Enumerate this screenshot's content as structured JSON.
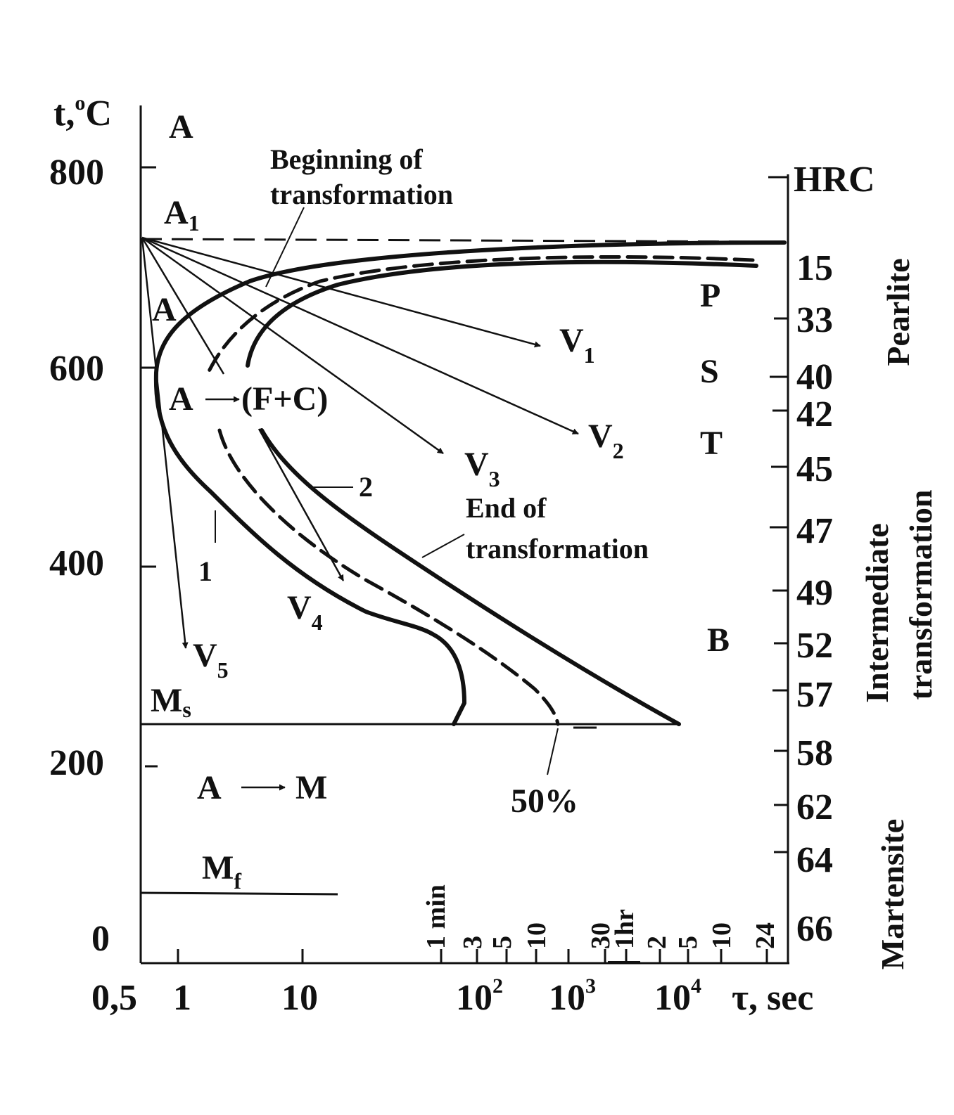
{
  "y_axis": {
    "label": "t,",
    "label_sup": "o",
    "label_unit": "C",
    "ticks": [
      "800",
      "600",
      "400",
      "200",
      "0"
    ]
  },
  "x_axis": {
    "label": "τ, sec",
    "tick_05": "0,5",
    "tick_1": "1",
    "tick_10": "10",
    "pow_base": "10",
    "pow_2": "2",
    "pow_3": "3",
    "pow_4": "4"
  },
  "time_labels": [
    "1 min",
    "3",
    "5",
    "10",
    "30",
    "1hr",
    "2",
    "5",
    "10",
    "24"
  ],
  "hrc": {
    "title": "HRC",
    "values": [
      "15",
      "33",
      "40",
      "42",
      "45",
      "47",
      "49",
      "52",
      "57",
      "58",
      "62",
      "64",
      "66"
    ]
  },
  "regions": {
    "pearlite": "Pearlite",
    "intermediate": "Intermediate",
    "transformation": "transformation",
    "martensite": "Martensite"
  },
  "structures": {
    "P": "P",
    "S": "S",
    "T": "T",
    "B": "B"
  },
  "labels": {
    "A_top": "A",
    "A1_main": "A",
    "A1_sub": "1",
    "A_mid": "A",
    "A_transform": "A",
    "FC": "(F+C)",
    "A_bottom": "A",
    "M": "M",
    "Ms_main": "M",
    "Ms_sub": "s",
    "Mf_main": "M",
    "Mf_sub": "f",
    "begin_1": "Beginning of",
    "begin_2": "transformation",
    "end_1": "End of",
    "end_2": "transformation",
    "fifty": "50%",
    "curve_1": "1",
    "curve_2": "2"
  },
  "cooling_rates": [
    {
      "main": "V",
      "sub": "1"
    },
    {
      "main": "V",
      "sub": "2"
    },
    {
      "main": "V",
      "sub": "3"
    },
    {
      "main": "V",
      "sub": "4"
    },
    {
      "main": "V",
      "sub": "5"
    }
  ]
}
